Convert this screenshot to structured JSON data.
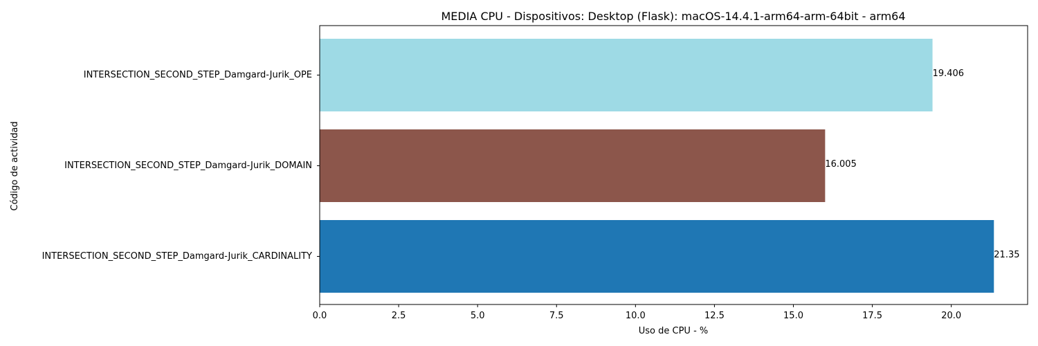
{
  "chart_data": {
    "type": "bar",
    "orientation": "horizontal",
    "title": "MEDIA CPU - Dispositivos: Desktop (Flask): macOS-14.4.1-arm64-arm-64bit - arm64",
    "xlabel": "Uso de CPU - %",
    "ylabel": "Código de actividad",
    "xlim": [
      0,
      22.4175
    ],
    "xticks": [
      "0.0",
      "2.5",
      "5.0",
      "7.5",
      "10.0",
      "12.5",
      "15.0",
      "17.5",
      "20.0"
    ],
    "grid": false,
    "categories": [
      "INTERSECTION_SECOND_STEP_Damgard-Jurik_CARDINALITY",
      "INTERSECTION_SECOND_STEP_Damgard-Jurik_DOMAIN",
      "INTERSECTION_SECOND_STEP_Damgard-Jurik_OPE"
    ],
    "values": [
      21.35,
      16.005,
      19.406
    ],
    "value_labels": [
      "21.35",
      "16.005",
      "19.406"
    ],
    "colors": [
      "#1f77b4",
      "#8c564b",
      "#9edae5"
    ]
  }
}
